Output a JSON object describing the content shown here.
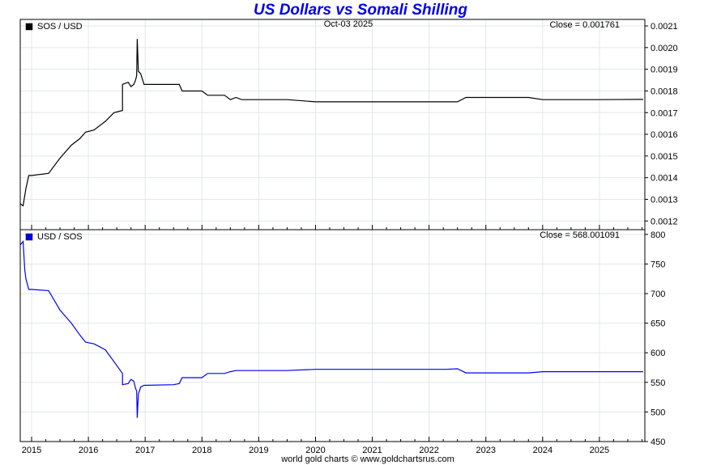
{
  "page": {
    "title": "US Dollars vs Somali Shilling",
    "footer": "world gold charts © www.goldchartsrus.com"
  },
  "chart_data": [
    {
      "type": "line",
      "legend": "SOS / USD",
      "date_label": "Oct-03  2025",
      "close_label": "Close = 0.001761",
      "color": "#000000",
      "y_ticks": [
        "0.0012",
        "0.0013",
        "0.0014",
        "0.0015",
        "0.0016",
        "0.0017",
        "0.0018",
        "0.0019",
        "0.0020",
        "0.0021"
      ],
      "ylim": [
        0.00116,
        0.00213
      ],
      "x_ticks": [
        "2015",
        "2016",
        "2017",
        "2018",
        "2019",
        "2020",
        "2021",
        "2022",
        "2023",
        "2024",
        "2025"
      ],
      "xlim": [
        2014.8,
        2025.8
      ],
      "grid": true,
      "legend_position": "top-left",
      "series": [
        {
          "x": [
            2014.8,
            2014.85,
            2014.9,
            2014.95,
            2015.0,
            2015.3,
            2015.5,
            2015.7,
            2015.85,
            2015.95,
            2016.1,
            2016.3,
            2016.45,
            2016.6,
            2016.6,
            2016.7,
            2016.75,
            2016.8,
            2016.83,
            2016.85,
            2016.86,
            2016.88,
            2016.92,
            2016.98,
            2017.5,
            2017.6,
            2017.65,
            2017.95,
            2018.0,
            2018.1,
            2018.4,
            2018.5,
            2018.6,
            2018.7,
            2019.0,
            2019.5,
            2020.0,
            2020.5,
            2021.0,
            2021.5,
            2022.0,
            2022.3,
            2022.5,
            2022.65,
            2023.0,
            2023.5,
            2023.75,
            2024.0,
            2025.0,
            2025.77
          ],
          "y": [
            0.00128,
            0.00127,
            0.00135,
            0.00141,
            0.00141,
            0.00142,
            0.00149,
            0.00155,
            0.00158,
            0.00161,
            0.00162,
            0.00166,
            0.0017,
            0.00171,
            0.00183,
            0.00184,
            0.00182,
            0.00183,
            0.00185,
            0.00187,
            0.00204,
            0.00189,
            0.00188,
            0.00183,
            0.00183,
            0.00183,
            0.0018,
            0.0018,
            0.0018,
            0.00178,
            0.00178,
            0.00176,
            0.00177,
            0.00176,
            0.00176,
            0.00176,
            0.00175,
            0.00175,
            0.00175,
            0.00175,
            0.00175,
            0.00175,
            0.00175,
            0.00177,
            0.00177,
            0.00177,
            0.00177,
            0.00176,
            0.00176,
            0.001761
          ]
        }
      ]
    },
    {
      "type": "line",
      "legend": "USD / SOS",
      "close_label": "Close = 568.001091",
      "color": "#0000ee",
      "y_ticks": [
        "450",
        "500",
        "550",
        "600",
        "650",
        "700",
        "750",
        "800"
      ],
      "ylim": [
        450,
        808
      ],
      "x_ticks": [
        "2015",
        "2016",
        "2017",
        "2018",
        "2019",
        "2020",
        "2021",
        "2022",
        "2023",
        "2024",
        "2025"
      ],
      "xlim": [
        2014.8,
        2025.8
      ],
      "grid": true,
      "legend_position": "top-left",
      "series": [
        {
          "x": [
            2014.8,
            2014.85,
            2014.88,
            2014.9,
            2014.95,
            2015.0,
            2015.3,
            2015.5,
            2015.7,
            2015.85,
            2015.95,
            2016.1,
            2016.3,
            2016.45,
            2016.6,
            2016.6,
            2016.7,
            2016.75,
            2016.8,
            2016.83,
            2016.85,
            2016.86,
            2016.88,
            2016.92,
            2016.98,
            2017.5,
            2017.6,
            2017.65,
            2017.95,
            2018.0,
            2018.1,
            2018.4,
            2018.5,
            2018.6,
            2018.7,
            2019.0,
            2019.5,
            2020.0,
            2020.5,
            2021.0,
            2021.5,
            2022.0,
            2022.3,
            2022.5,
            2022.65,
            2023.0,
            2023.5,
            2023.75,
            2024.0,
            2025.0,
            2025.77
          ],
          "y": [
            782,
            788,
            740,
            725,
            707,
            707,
            705,
            672,
            650,
            630,
            618,
            615,
            605,
            585,
            565,
            546,
            548,
            555,
            552,
            540,
            535,
            490,
            530,
            542,
            545,
            546,
            548,
            558,
            558,
            558,
            565,
            565,
            568,
            570,
            570,
            570,
            570,
            572,
            572,
            572,
            572,
            572,
            572,
            573,
            566,
            566,
            566,
            566,
            568,
            568,
            568
          ]
        }
      ]
    }
  ]
}
